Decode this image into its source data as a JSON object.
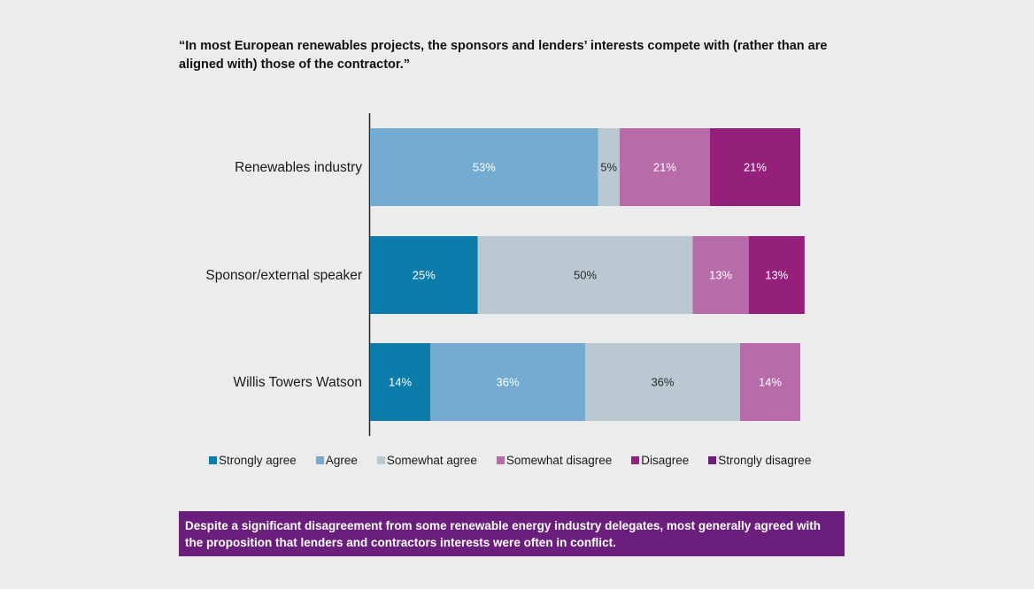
{
  "title": "“In most European renewables projects, the sponsors and lenders’ interests compete with (rather than are aligned with) those of the contractor.”",
  "chart_data": {
    "type": "bar",
    "orientation": "horizontal",
    "stacked": true,
    "title": "“In most European renewables projects, the sponsors and lenders’ interests compete with (rather than are aligned with) those of the contractor.”",
    "categories": [
      "Renewables industry",
      "Sponsor/external speaker",
      "Willis Towers Watson"
    ],
    "xlim": [
      0,
      100
    ],
    "grid": false,
    "legend_position": "bottom",
    "series": [
      {
        "name": "Strongly agree",
        "color": "#0e7cab",
        "values": [
          0,
          25,
          14
        ],
        "labels": [
          "",
          "25%",
          "14%"
        ]
      },
      {
        "name": "Agree",
        "color": "#74abd0",
        "values": [
          53,
          0,
          36
        ],
        "labels": [
          "53%",
          "",
          "36%"
        ]
      },
      {
        "name": "Somewhat agree",
        "color": "#bac8d1",
        "values": [
          5,
          50,
          36
        ],
        "labels": [
          "5%",
          "50%",
          "36%"
        ]
      },
      {
        "name": "Somewhat disagree",
        "color": "#b76ba8",
        "values": [
          21,
          13,
          14
        ],
        "labels": [
          "21%",
          "13%",
          "14%"
        ]
      },
      {
        "name": "Disagree",
        "color": "#95207c",
        "values": [
          21,
          13,
          0
        ],
        "labels": [
          "21%",
          "13%",
          ""
        ]
      },
      {
        "name": "Strongly disagree",
        "color": "#6d1f79",
        "values": [
          0,
          0,
          0
        ],
        "labels": [
          "",
          "",
          ""
        ]
      }
    ]
  },
  "callout": "Despite a significant disagreement from some renewable energy industry delegates, most generally agreed with the proposition that lenders and contractors interests were often in conflict."
}
